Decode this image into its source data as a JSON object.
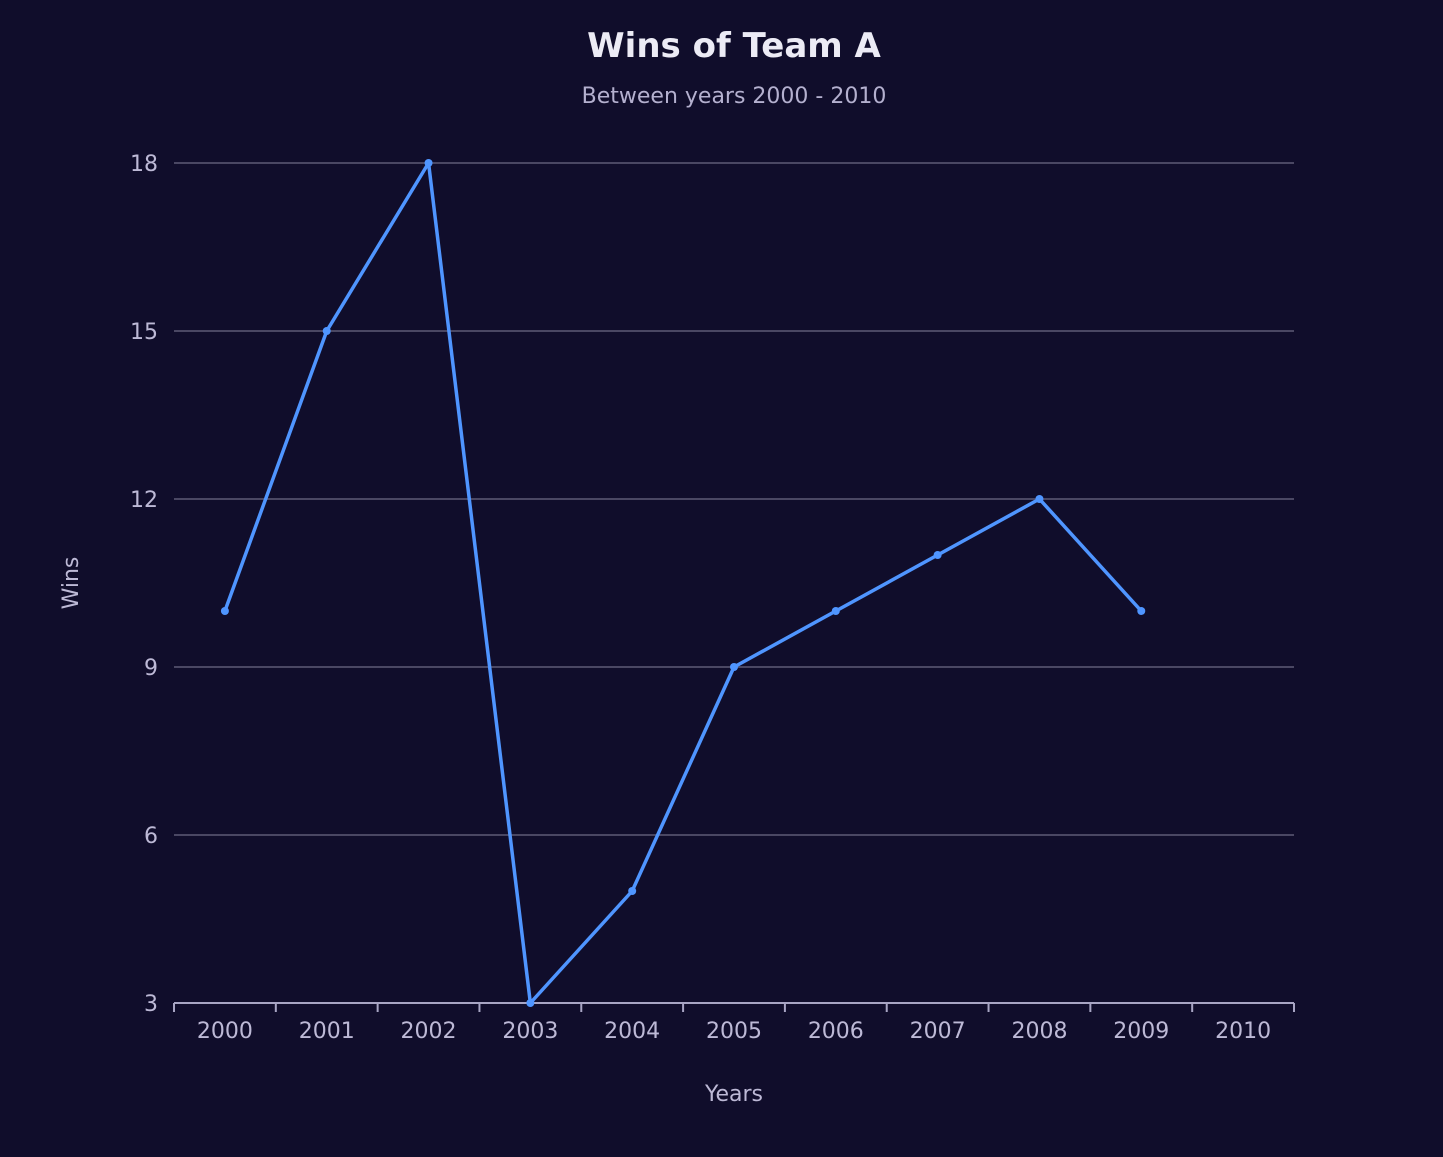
{
  "chart_data": {
    "type": "line",
    "title": "Wins of Team A",
    "subtitle": "Between years 2000 - 2010",
    "xlabel": "Years",
    "ylabel": "Wins",
    "categories": [
      "2000",
      "2001",
      "2002",
      "2003",
      "2004",
      "2005",
      "2006",
      "2007",
      "2008",
      "2009",
      "2010"
    ],
    "y_ticks": [
      3,
      6,
      9,
      12,
      15,
      18
    ],
    "ylim": [
      3,
      18
    ],
    "grid": true,
    "legend": "none",
    "series": [
      {
        "values": [
          10,
          15,
          18,
          3,
          5,
          9,
          10,
          11,
          12,
          10,
          null
        ],
        "color": "#4f95ff"
      }
    ]
  }
}
